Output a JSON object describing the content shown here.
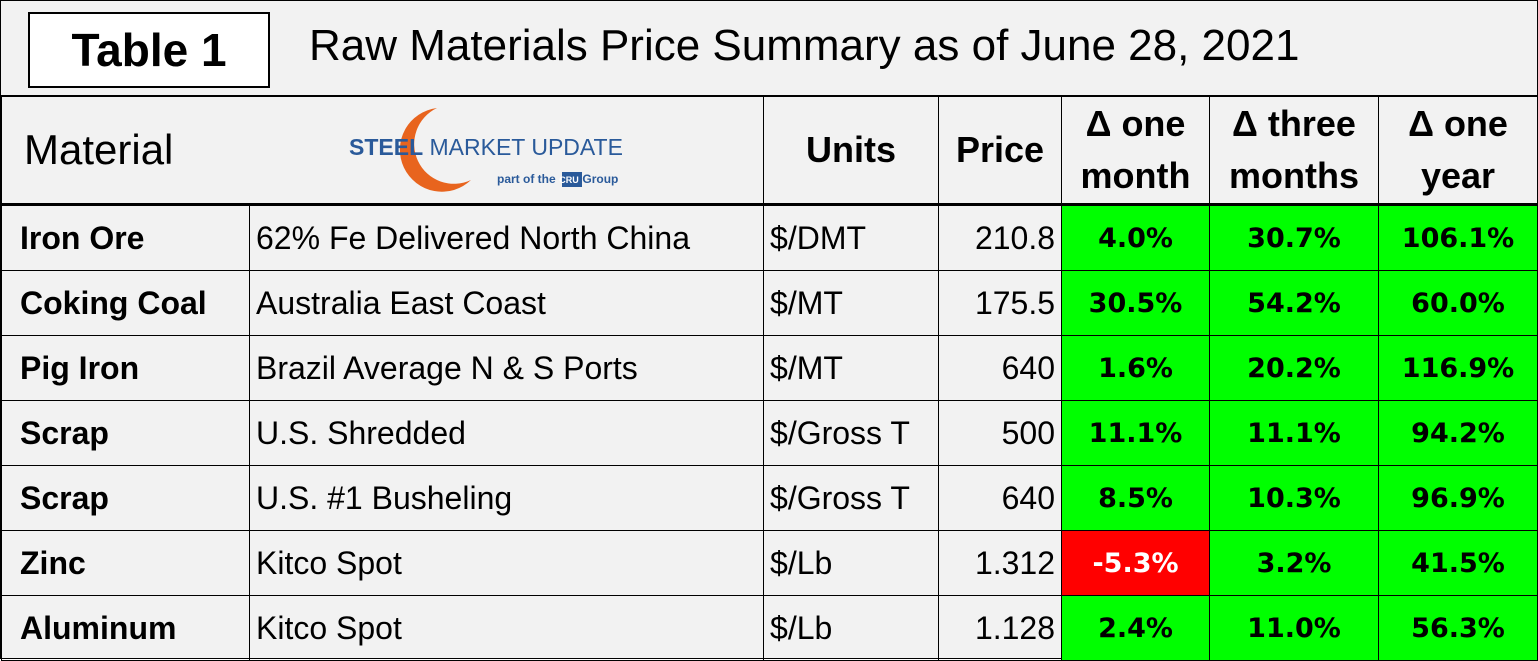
{
  "header": {
    "label": "Table 1",
    "title": "Raw Materials Price Summary as of June 28, 2021"
  },
  "logo": {
    "brand_steel": "STEEL",
    "brand_rest": "MARKET UPDATE",
    "tagline_pre": "part of the",
    "tagline_mark": "CRU",
    "tagline_post": "Group"
  },
  "table": {
    "columns": [
      "Material",
      "Units",
      "Price",
      "Δ one month",
      "Δ three months",
      "Δ one year"
    ],
    "rows": [
      [
        "Iron Ore",
        "62% Fe Delivered North China",
        "$/DMT",
        "210.8",
        "4.0%",
        "30.7%",
        "106.1%"
      ],
      [
        "Coking Coal",
        "Australia East Coast",
        "$/MT",
        "175.5",
        "30.5%",
        "54.2%",
        "60.0%"
      ],
      [
        "Pig Iron",
        "Brazil Average N & S Ports",
        "$/MT",
        "640",
        "1.6%",
        "20.2%",
        "116.9%"
      ],
      [
        "Scrap",
        "U.S. Shredded",
        "$/Gross T",
        "500",
        "11.1%",
        "11.1%",
        "94.2%"
      ],
      [
        "Scrap",
        "U.S. #1 Busheling",
        "$/Gross T",
        "640",
        "8.5%",
        "10.3%",
        "96.9%"
      ],
      [
        "Zinc",
        "Kitco Spot",
        "$/Lb",
        "1.312",
        "-5.3%",
        "3.2%",
        "41.5%"
      ],
      [
        "Aluminum",
        "Kitco Spot",
        "$/Lb",
        "1.128",
        "2.4%",
        "11.0%",
        "56.3%"
      ]
    ],
    "positive_color": "#00ff00",
    "negative_color": "#ff0000"
  }
}
